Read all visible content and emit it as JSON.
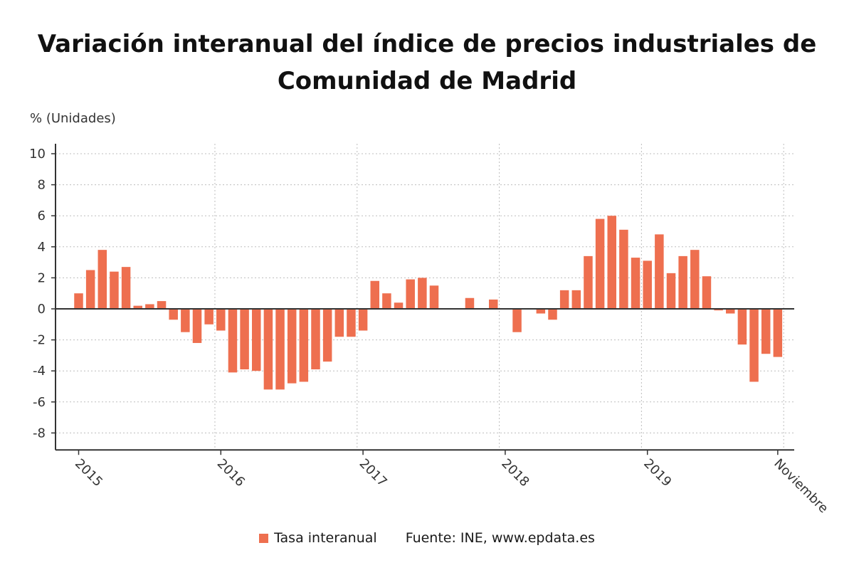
{
  "chart_data": {
    "type": "bar",
    "title": "Variación interanual del índice de precios industriales de Comunidad de Madrid",
    "ylabel": "% (Unidades)",
    "ylim": [
      -9,
      10
    ],
    "yticks": [
      10,
      8,
      6,
      4,
      2,
      0,
      -2,
      -4,
      -6,
      -8
    ],
    "grid": true,
    "x_tick_labels": [
      "2015",
      "2016",
      "2017",
      "2018",
      "2019",
      "Noviembre"
    ],
    "series": [
      {
        "name": "Tasa interanual",
        "color": "#ee6f4f",
        "values": [
          1.0,
          2.5,
          3.8,
          2.4,
          2.7,
          0.2,
          0.3,
          0.5,
          -0.7,
          -1.5,
          -2.2,
          -1.0,
          -1.4,
          -4.1,
          -3.9,
          -4.0,
          -5.2,
          -5.2,
          -4.8,
          -4.7,
          -3.9,
          -3.4,
          -1.8,
          -1.8,
          -1.4,
          1.8,
          1.0,
          0.4,
          1.9,
          2.0,
          1.5,
          0.0,
          0.0,
          0.7,
          0.0,
          0.6,
          0.0,
          -1.5,
          0.0,
          -0.3,
          -0.7,
          1.2,
          1.2,
          3.4,
          5.8,
          6.0,
          5.1,
          3.3,
          3.1,
          4.8,
          2.3,
          3.4,
          3.8,
          2.1,
          -0.1,
          -0.3,
          -2.3,
          -4.7,
          -2.9,
          -3.1
        ]
      }
    ],
    "legend": "bottom",
    "source": "Fuente: INE, www.epdata.es"
  }
}
